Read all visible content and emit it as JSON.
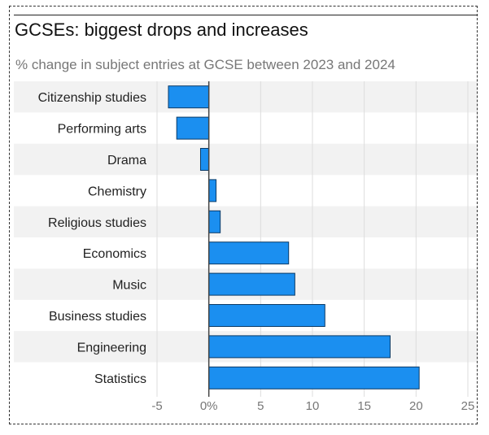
{
  "header": {
    "title": "GCSEs: biggest drops and increases",
    "subtitle": "% change in subject entries at GCSE between 2023 and 2024"
  },
  "colors": {
    "bar": "#1b8ff0",
    "bar_stroke": "#0a3a66",
    "band": "#f2f2f2",
    "grid": "#dddddd",
    "zero_line": "#444444",
    "tick_text": "#777777",
    "label_text": "#222222"
  },
  "chart_data": {
    "type": "bar",
    "orientation": "horizontal",
    "title": "GCSEs: biggest drops and increases",
    "subtitle": "% change in subject entries at GCSE between 2023 and 2024",
    "categories": [
      "Citizenship studies",
      "Performing arts",
      "Drama",
      "Chemistry",
      "Religious studies",
      "Economics",
      "Music",
      "Business studies",
      "Engineering",
      "Statistics"
    ],
    "values": [
      -3.9,
      -3.1,
      -0.8,
      0.7,
      1.1,
      7.7,
      8.3,
      11.2,
      17.5,
      20.3
    ],
    "xlim": [
      -5,
      25
    ],
    "xticks": [
      -5,
      0,
      5,
      10,
      15,
      20,
      25
    ],
    "xtick_labels": [
      "-5",
      "0%",
      "5",
      "10",
      "15",
      "20",
      "25"
    ],
    "xlabel": "",
    "ylabel": "",
    "grid": true,
    "alternating_row_bands": true
  }
}
